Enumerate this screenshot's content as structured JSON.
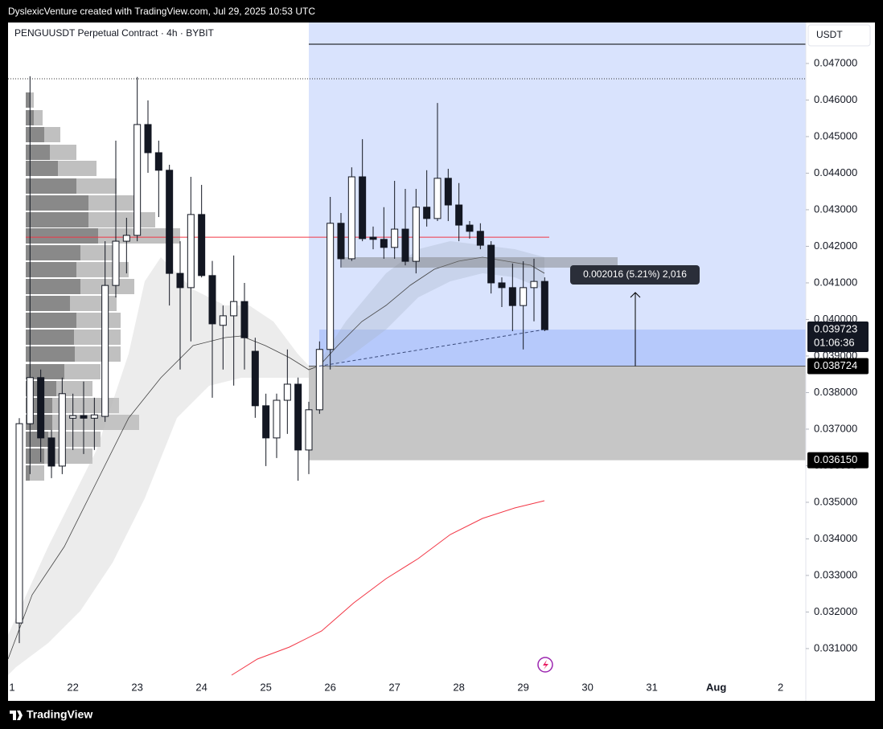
{
  "chart_data": {
    "type": "candlestick",
    "header": "DyslexicVenture created with TradingView.com, Jul 29, 2025 10:53 UTC",
    "title": "PENGUUSDT Perpetual Contract · 4h · BYBIT",
    "currency": "USDT",
    "brand": "TradingView",
    "open": [
      0.0317,
      0.03715,
      0.03841,
      0.03676,
      0.03599,
      0.0373,
      0.03737,
      0.0373,
      0.03735,
      0.04093,
      0.04214,
      0.0423,
      0.04533,
      0.04456,
      0.04408,
      0.04126,
      0.04087,
      0.04287,
      0.0412,
      0.03984,
      0.0401,
      0.04049,
      0.03913,
      0.03764,
      0.03676,
      0.03779,
      0.03823,
      0.03643,
      0.03753,
      0.03918,
      0.04263,
      0.04166,
      0.0439,
      0.04225,
      0.04219,
      0.04197,
      0.04247,
      0.04159,
      0.04307,
      0.04276,
      0.04386,
      0.04313,
      0.04258,
      0.04241,
      0.04203,
      0.041,
      0.04087,
      0.04038,
      0.04087,
      0.04104
    ],
    "high": [
      0.0373,
      0.04665,
      0.03863,
      0.03698,
      0.03841,
      0.03797,
      0.0383,
      0.03786,
      0.04214,
      0.04489,
      0.04278,
      0.04663,
      0.04599,
      0.04489,
      0.04423,
      0.04214,
      0.0439,
      0.04368,
      0.0416,
      0.04038,
      0.04175,
      0.041,
      0.0395,
      0.03797,
      0.03797,
      0.03918,
      0.03841,
      0.03775,
      0.0394,
      0.04335,
      0.04291,
      0.04416,
      0.04493,
      0.04254,
      0.04307,
      0.04379,
      0.04357,
      0.04357,
      0.04408,
      0.04592,
      0.04412,
      0.04373,
      0.04269,
      0.04263,
      0.04214,
      0.04115,
      0.04153,
      0.04159,
      0.04166,
      0.04115
    ],
    "low": [
      0.03115,
      0.03577,
      0.0361,
      0.03566,
      0.03577,
      0.03643,
      0.03632,
      0.03643,
      0.0372,
      0.0406,
      0.04126,
      0.04214,
      0.04401,
      0.0428,
      0.04038,
      0.03863,
      0.0394,
      0.04115,
      0.03786,
      0.03863,
      0.03819,
      0.03863,
      0.03731,
      0.03599,
      0.03621,
      0.03687,
      0.03559,
      0.03577,
      0.03742,
      0.03863,
      0.04142,
      0.0416,
      0.04214,
      0.04192,
      0.04166,
      0.04166,
      0.04148,
      0.04126,
      0.04254,
      0.04269,
      0.04269,
      0.04214,
      0.04221,
      0.04192,
      0.04071,
      0.04034,
      0.03968,
      0.03918,
      0.03995,
      0.03968
    ],
    "close": [
      0.03715,
      0.03841,
      0.03676,
      0.03599,
      0.03797,
      0.03737,
      0.0373,
      0.03739,
      0.04093,
      0.04214,
      0.0423,
      0.04533,
      0.04456,
      0.04408,
      0.04126,
      0.04087,
      0.04287,
      0.0412,
      0.03988,
      0.0401,
      0.04049,
      0.0395,
      0.03764,
      0.03676,
      0.03779,
      0.03823,
      0.03643,
      0.03753,
      0.03918,
      0.04263,
      0.04166,
      0.0439,
      0.04221,
      0.04219,
      0.04197,
      0.04247,
      0.04159,
      0.04307,
      0.04276,
      0.04386,
      0.04313,
      0.04258,
      0.04241,
      0.04203,
      0.041,
      0.04087,
      0.04038,
      0.04087,
      0.04104,
      0.03972
    ],
    "up_color": "#ffffff",
    "down_color": "#131722",
    "xlim": [
      -1.05,
      73.35
    ],
    "xticks": [
      {
        "value": -1,
        "label": "1"
      },
      {
        "value": 5,
        "label": "22"
      },
      {
        "value": 11,
        "label": "23"
      },
      {
        "value": 17,
        "label": "24"
      },
      {
        "value": 23,
        "label": "25"
      },
      {
        "value": 29,
        "label": "26"
      },
      {
        "value": 35,
        "label": "27"
      },
      {
        "value": 41,
        "label": "28"
      },
      {
        "value": 47,
        "label": "29"
      },
      {
        "value": 53,
        "label": "30"
      },
      {
        "value": 59,
        "label": "31"
      },
      {
        "value": 65,
        "label": "Aug"
      },
      {
        "value": 71,
        "label": "2"
      }
    ],
    "ylim": [
      0.02957,
      0.04812
    ],
    "yticks": [
      {
        "value": 0.031,
        "label": "0.031000"
      },
      {
        "value": 0.032,
        "label": "0.032000"
      },
      {
        "value": 0.033,
        "label": "0.033000"
      },
      {
        "value": 0.034,
        "label": "0.034000"
      },
      {
        "value": 0.035,
        "label": "0.035000"
      },
      {
        "value": 0.036,
        "label": "0.036000"
      },
      {
        "value": 0.037,
        "label": "0.037000"
      },
      {
        "value": 0.038,
        "label": "0.038000"
      },
      {
        "value": 0.039,
        "label": "0.039000"
      },
      {
        "value": 0.04,
        "label": "0.040000"
      },
      {
        "value": 0.041,
        "label": "0.041000"
      },
      {
        "value": 0.042,
        "label": "0.042000"
      },
      {
        "value": 0.043,
        "label": "0.043000"
      },
      {
        "value": 0.044,
        "label": "0.044000"
      },
      {
        "value": 0.045,
        "label": "0.045000"
      },
      {
        "value": 0.046,
        "label": "0.046000"
      },
      {
        "value": 0.047,
        "label": "0.047000"
      }
    ],
    "horizontal_line": {
      "value": 0.04225,
      "color": "#f23645"
    },
    "price_labels": [
      0.039723,
      0.038724,
      {
        "value": 0.03615,
        "label": "0.036150"
      }
    ],
    "countdown": "01:06:36",
    "measure": "0.002016 (5.21%) 2,016"
  }
}
